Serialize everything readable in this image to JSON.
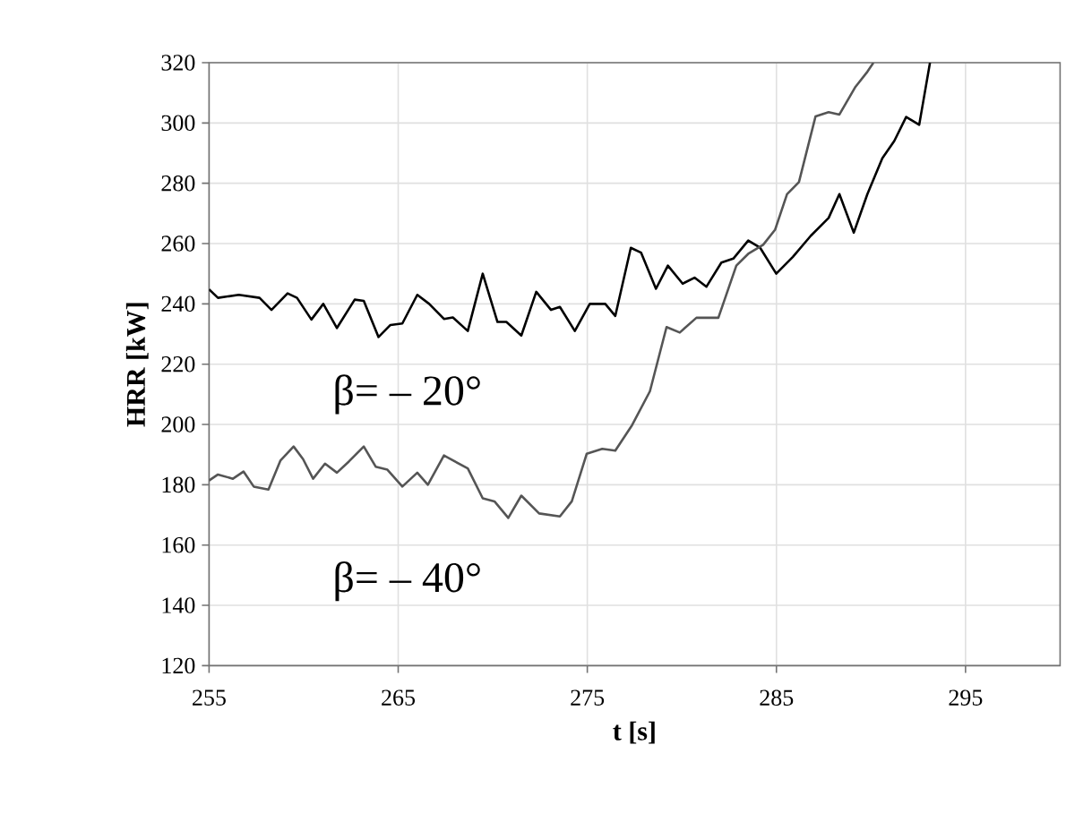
{
  "chart_data": {
    "type": "line",
    "xlabel": "t [s]",
    "ylabel": "HRR [kW]",
    "xlim": [
      255,
      300
    ],
    "xticks": [
      255,
      265,
      275,
      285,
      295
    ],
    "ylim": [
      120,
      320
    ],
    "yticks": [
      120,
      140,
      160,
      180,
      200,
      220,
      240,
      260,
      280,
      300,
      320
    ],
    "grid": true,
    "marker": "none",
    "line_style": "solid",
    "series": [
      {
        "color": "#000000",
        "x": [
          255.0,
          255.47,
          256.57,
          257.67,
          258.3,
          259.15,
          259.65,
          260.41,
          261.04,
          261.76,
          262.7,
          263.18,
          263.96,
          264.59,
          265.22,
          266.01,
          266.64,
          267.42,
          267.89,
          268.68,
          269.47,
          270.25,
          270.72,
          271.51,
          272.3,
          273.08,
          273.55,
          274.34,
          275.13,
          275.95,
          276.48,
          277.3,
          277.84,
          278.63,
          279.26,
          280.04,
          280.67,
          281.3,
          282.09,
          282.72,
          283.51,
          284.14,
          284.99,
          285.87,
          286.82,
          287.76,
          288.33,
          289.09,
          289.81,
          290.6,
          291.23,
          291.86,
          292.55,
          293.12
        ],
        "values": [
          244.8,
          242,
          243,
          242,
          238,
          243.5,
          242,
          234.8,
          240,
          232,
          241.4,
          241,
          229,
          233,
          233.5,
          243,
          240,
          235,
          235.5,
          231,
          250,
          234,
          234,
          229.5,
          244,
          238,
          239,
          231,
          240,
          240,
          236,
          258.6,
          257,
          245,
          252.7,
          246.7,
          248.7,
          245.7,
          253.7,
          255,
          261,
          258.6,
          250,
          255.6,
          262.6,
          268.5,
          276.4,
          263.6,
          276.4,
          288.3,
          294,
          302,
          299.4,
          320
        ]
      },
      {
        "color": "#555555",
        "x": [
          255.0,
          255.47,
          256.26,
          256.82,
          257.36,
          258.14,
          258.77,
          259.47,
          259.97,
          260.5,
          261.13,
          261.76,
          262.39,
          263.18,
          263.81,
          264.43,
          265.22,
          266.01,
          266.57,
          267.42,
          268.68,
          269.47,
          270.09,
          270.82,
          271.51,
          272.45,
          273.55,
          274.18,
          274.97,
          275.79,
          276.48,
          277.37,
          278.31,
          279.19,
          279.89,
          280.77,
          281.93,
          282.88,
          283.51,
          284.3,
          284.93,
          285.56,
          286.19,
          287.07,
          287.76,
          288.33,
          289.18,
          289.81,
          290.13
        ],
        "values": [
          181.4,
          183.4,
          182,
          184.4,
          179.4,
          178.4,
          188,
          192.7,
          188.5,
          182,
          187,
          184,
          187.7,
          192.7,
          186,
          185,
          179.4,
          184,
          180,
          189.7,
          185.4,
          175.5,
          174.5,
          169,
          176.4,
          170.5,
          169.5,
          174.5,
          190.3,
          191.9,
          191.3,
          199.8,
          211,
          232.3,
          230.5,
          235.4,
          235.4,
          252.7,
          256.6,
          259.6,
          264.6,
          276.4,
          280.4,
          302.2,
          303.6,
          302.8,
          312,
          317,
          320
        ]
      }
    ],
    "annotations": [
      "β= – 20°",
      "β= – 40°"
    ]
  }
}
